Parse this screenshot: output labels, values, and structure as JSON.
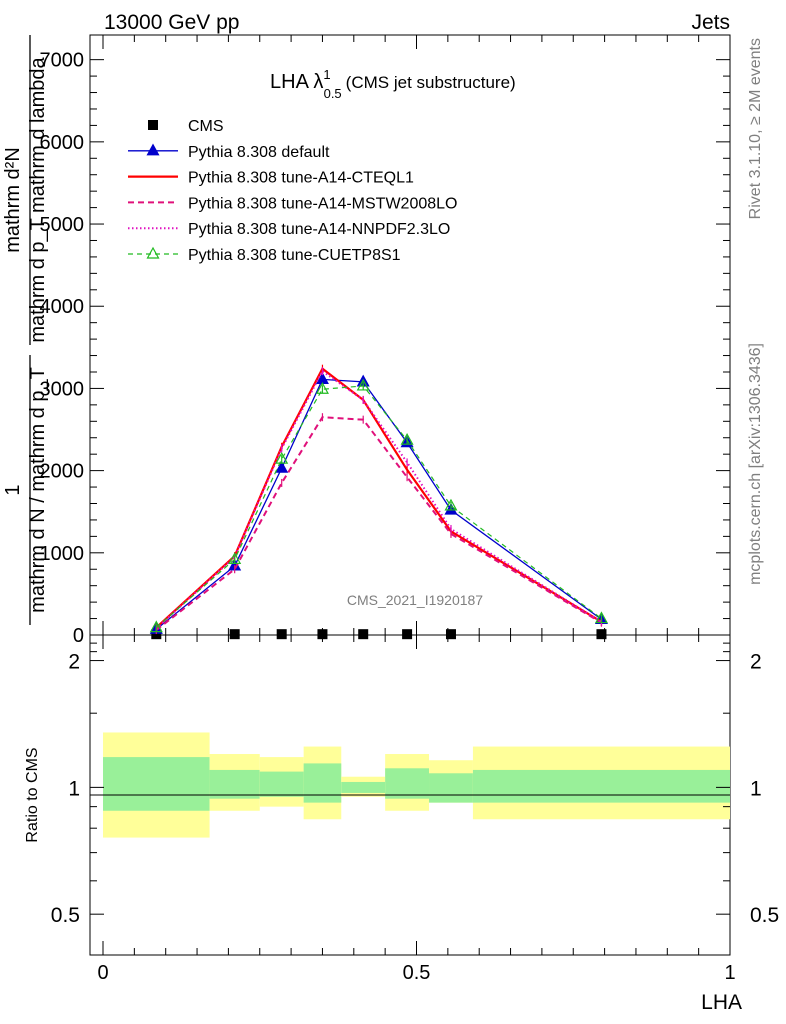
{
  "header": {
    "left": "13000 GeV pp",
    "right": "Jets"
  },
  "side": {
    "rivet": "Rivet 3.1.10, ≥ 2M events",
    "mcplots": "mcplots.cern.ch [arXiv:1306.3436]"
  },
  "chart_data": [
    {
      "type": "line",
      "title_main": "LHA λ",
      "title_sup": "1",
      "title_sub": "0.5",
      "title_rest": "(CMS jet substructure)",
      "ylabel_num": "1",
      "ylabel_den": "mathrm d N / mathrm d p_T",
      "ylabel_num2": "mathrm d²N",
      "ylabel_den2": "mathrm d p_T mathrm d lambda",
      "watermark": "CMS_2021_I1920187",
      "ylim": [
        0,
        7300
      ],
      "yticks": [
        "0",
        "1000",
        "2000",
        "3000",
        "4000",
        "5000",
        "6000",
        "7000"
      ],
      "ytick_values": [
        0,
        1000,
        2000,
        3000,
        4000,
        5000,
        6000,
        7000
      ],
      "ytick_display": [
        "0",
        "1000",
        "2000",
        "3000",
        "4000",
        "5000",
        "6000",
        "7000"
      ],
      "x": [
        0.085,
        0.21,
        0.285,
        0.35,
        0.415,
        0.485,
        0.555,
        0.795
      ],
      "series": [
        {
          "name": "CMS",
          "color": "#000000",
          "style": "marker-square",
          "values": [
            10,
            10,
            10,
            10,
            10,
            10,
            10,
            10
          ]
        },
        {
          "name": "Pythia 8.308 default",
          "color": "#0000cc",
          "style": "solid-triangle",
          "values": [
            70,
            840,
            2030,
            3110,
            3080,
            2340,
            1520,
            190
          ]
        },
        {
          "name": "Pythia 8.308 tune-A14-CTEQL1",
          "color": "#ff0000",
          "style": "solid-thick",
          "values": [
            90,
            960,
            2290,
            3240,
            2860,
            2010,
            1260,
            160
          ]
        },
        {
          "name": "Pythia 8.308 tune-A14-MSTW2008LO",
          "color": "#e0107a",
          "style": "dashed",
          "values": [
            60,
            800,
            1850,
            2650,
            2620,
            1920,
            1230,
            150
          ]
        },
        {
          "name": "Pythia 8.308 tune-A14-NNPDF2.3LO",
          "color": "#e010c0",
          "style": "dotted",
          "values": [
            80,
            950,
            2270,
            3210,
            2860,
            2100,
            1290,
            160
          ]
        },
        {
          "name": "Pythia 8.308 tune-CUETP8S1",
          "color": "#22bb22",
          "style": "dashed-triangle-open",
          "values": [
            90,
            920,
            2140,
            2990,
            3030,
            2370,
            1570,
            200
          ]
        }
      ]
    },
    {
      "type": "area",
      "ylabel": "Ratio to CMS",
      "xlabel": "LHA",
      "xlim": [
        0,
        1
      ],
      "xticks": [
        "0",
        "0.5",
        "1"
      ],
      "ylim": [
        0.4,
        2.3
      ],
      "yticks": [
        "0.5",
        "1",
        "2"
      ],
      "bins": [
        {
          "lo": 0.0,
          "hi": 0.17,
          "green": [
            0.88,
            1.18
          ],
          "yellow": [
            0.76,
            1.35
          ]
        },
        {
          "lo": 0.17,
          "hi": 0.25,
          "green": [
            0.94,
            1.1
          ],
          "yellow": [
            0.88,
            1.2
          ]
        },
        {
          "lo": 0.25,
          "hi": 0.32,
          "green": [
            0.95,
            1.09
          ],
          "yellow": [
            0.9,
            1.18
          ]
        },
        {
          "lo": 0.32,
          "hi": 0.38,
          "green": [
            0.92,
            1.14
          ],
          "yellow": [
            0.84,
            1.25
          ]
        },
        {
          "lo": 0.38,
          "hi": 0.45,
          "green": [
            0.97,
            1.03
          ],
          "yellow": [
            0.95,
            1.06
          ]
        },
        {
          "lo": 0.45,
          "hi": 0.52,
          "green": [
            0.94,
            1.11
          ],
          "yellow": [
            0.88,
            1.2
          ]
        },
        {
          "lo": 0.52,
          "hi": 0.59,
          "green": [
            0.92,
            1.08
          ],
          "yellow": [
            0.92,
            1.16
          ]
        },
        {
          "lo": 0.59,
          "hi": 1.0,
          "green": [
            0.92,
            1.1
          ],
          "yellow": [
            0.84,
            1.25
          ]
        }
      ],
      "colors": {
        "green": "#99f099",
        "yellow": "#ffff99"
      }
    }
  ]
}
